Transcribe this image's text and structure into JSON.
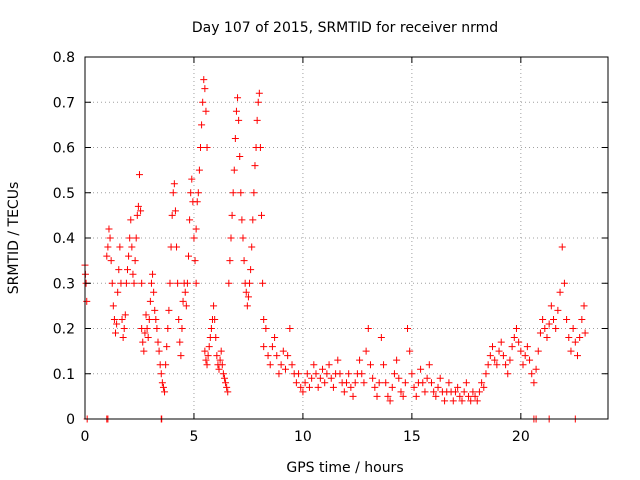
{
  "chart_data": {
    "type": "scatter",
    "title": "Day 107 of 2015, SRMTID for receiver nrmd",
    "xlabel": "GPS time / hours",
    "ylabel": "SRMTID / TECUs",
    "xlim": [
      0,
      24
    ],
    "ylim": [
      0,
      0.8
    ],
    "xticks": [
      0,
      5,
      10,
      15,
      20
    ],
    "yticks": [
      0,
      0.1,
      0.2,
      0.3,
      0.4,
      0.5,
      0.6,
      0.7,
      0.8
    ],
    "xtick_labels": [
      "0",
      "5",
      "10",
      "15",
      "20"
    ],
    "ytick_labels": [
      "0",
      "0.1",
      "0.2",
      "0.3",
      "0.4",
      "0.5",
      "0.6",
      "0.7",
      "0.8"
    ],
    "grid": true,
    "marker": "plus",
    "series": [
      {
        "name": "SRMTID",
        "color": "#ff0000",
        "points": [
          [
            0.0,
            0.34
          ],
          [
            0.02,
            0.32
          ],
          [
            0.05,
            0.3
          ],
          [
            0.08,
            0.26
          ],
          [
            0.1,
            0.0
          ],
          [
            1.0,
            0.0
          ],
          [
            1.05,
            0.0
          ],
          [
            1.0,
            0.36
          ],
          [
            1.05,
            0.38
          ],
          [
            1.1,
            0.42
          ],
          [
            1.15,
            0.4
          ],
          [
            1.2,
            0.35
          ],
          [
            1.25,
            0.3
          ],
          [
            1.3,
            0.25
          ],
          [
            1.35,
            0.22
          ],
          [
            1.4,
            0.19
          ],
          [
            1.45,
            0.21
          ],
          [
            1.5,
            0.28
          ],
          [
            1.55,
            0.33
          ],
          [
            1.6,
            0.38
          ],
          [
            1.65,
            0.3
          ],
          [
            1.7,
            0.22
          ],
          [
            1.75,
            0.18
          ],
          [
            1.8,
            0.2
          ],
          [
            1.85,
            0.23
          ],
          [
            1.9,
            0.3
          ],
          [
            1.95,
            0.33
          ],
          [
            2.0,
            0.36
          ],
          [
            2.05,
            0.4
          ],
          [
            2.1,
            0.44
          ],
          [
            2.15,
            0.38
          ],
          [
            2.2,
            0.32
          ],
          [
            2.25,
            0.3
          ],
          [
            2.3,
            0.35
          ],
          [
            2.35,
            0.4
          ],
          [
            2.4,
            0.45
          ],
          [
            2.45,
            0.47
          ],
          [
            2.5,
            0.54
          ],
          [
            2.55,
            0.46
          ],
          [
            2.6,
            0.3
          ],
          [
            2.6,
            0.2
          ],
          [
            2.65,
            0.17
          ],
          [
            2.7,
            0.15
          ],
          [
            2.75,
            0.19
          ],
          [
            2.8,
            0.23
          ],
          [
            2.85,
            0.2
          ],
          [
            2.9,
            0.18
          ],
          [
            2.95,
            0.22
          ],
          [
            3.0,
            0.26
          ],
          [
            3.05,
            0.3
          ],
          [
            3.1,
            0.32
          ],
          [
            3.15,
            0.28
          ],
          [
            3.2,
            0.24
          ],
          [
            3.25,
            0.22
          ],
          [
            3.3,
            0.2
          ],
          [
            3.35,
            0.17
          ],
          [
            3.4,
            0.15
          ],
          [
            3.45,
            0.12
          ],
          [
            3.5,
            0.0
          ],
          [
            3.52,
            0.0
          ],
          [
            3.5,
            0.1
          ],
          [
            3.55,
            0.08
          ],
          [
            3.6,
            0.07
          ],
          [
            3.65,
            0.06
          ],
          [
            3.7,
            0.12
          ],
          [
            3.75,
            0.16
          ],
          [
            3.8,
            0.2
          ],
          [
            3.85,
            0.24
          ],
          [
            3.9,
            0.3
          ],
          [
            3.95,
            0.38
          ],
          [
            4.0,
            0.45
          ],
          [
            4.05,
            0.5
          ],
          [
            4.1,
            0.52
          ],
          [
            4.15,
            0.46
          ],
          [
            4.2,
            0.38
          ],
          [
            4.25,
            0.3
          ],
          [
            4.3,
            0.22
          ],
          [
            4.35,
            0.17
          ],
          [
            4.4,
            0.14
          ],
          [
            4.45,
            0.2
          ],
          [
            4.5,
            0.26
          ],
          [
            4.55,
            0.3
          ],
          [
            4.6,
            0.28
          ],
          [
            4.65,
            0.25
          ],
          [
            4.7,
            0.3
          ],
          [
            4.75,
            0.36
          ],
          [
            4.8,
            0.44
          ],
          [
            4.85,
            0.5
          ],
          [
            4.9,
            0.53
          ],
          [
            4.95,
            0.48
          ],
          [
            5.0,
            0.4
          ],
          [
            5.05,
            0.35
          ],
          [
            5.1,
            0.3
          ],
          [
            5.1,
            0.42
          ],
          [
            5.15,
            0.48
          ],
          [
            5.2,
            0.5
          ],
          [
            5.25,
            0.55
          ],
          [
            5.3,
            0.6
          ],
          [
            5.35,
            0.65
          ],
          [
            5.4,
            0.7
          ],
          [
            5.45,
            0.75
          ],
          [
            5.5,
            0.73
          ],
          [
            5.55,
            0.68
          ],
          [
            5.6,
            0.6
          ],
          [
            5.5,
            0.15
          ],
          [
            5.55,
            0.13
          ],
          [
            5.6,
            0.12
          ],
          [
            5.65,
            0.14
          ],
          [
            5.7,
            0.16
          ],
          [
            5.75,
            0.18
          ],
          [
            5.8,
            0.2
          ],
          [
            5.85,
            0.22
          ],
          [
            5.9,
            0.25
          ],
          [
            5.95,
            0.22
          ],
          [
            6.0,
            0.18
          ],
          [
            6.05,
            0.14
          ],
          [
            6.1,
            0.12
          ],
          [
            6.15,
            0.11
          ],
          [
            6.2,
            0.13
          ],
          [
            6.25,
            0.15
          ],
          [
            6.3,
            0.12
          ],
          [
            6.35,
            0.1
          ],
          [
            6.4,
            0.09
          ],
          [
            6.45,
            0.08
          ],
          [
            6.5,
            0.07
          ],
          [
            6.55,
            0.06
          ],
          [
            6.6,
            0.3
          ],
          [
            6.65,
            0.35
          ],
          [
            6.7,
            0.4
          ],
          [
            6.75,
            0.45
          ],
          [
            6.8,
            0.5
          ],
          [
            6.85,
            0.55
          ],
          [
            6.9,
            0.62
          ],
          [
            6.95,
            0.68
          ],
          [
            7.0,
            0.71
          ],
          [
            7.05,
            0.66
          ],
          [
            7.1,
            0.58
          ],
          [
            7.15,
            0.5
          ],
          [
            7.2,
            0.44
          ],
          [
            7.25,
            0.4
          ],
          [
            7.3,
            0.35
          ],
          [
            7.35,
            0.3
          ],
          [
            7.4,
            0.28
          ],
          [
            7.45,
            0.25
          ],
          [
            7.5,
            0.27
          ],
          [
            7.55,
            0.3
          ],
          [
            7.6,
            0.33
          ],
          [
            7.65,
            0.38
          ],
          [
            7.7,
            0.44
          ],
          [
            7.75,
            0.5
          ],
          [
            7.8,
            0.56
          ],
          [
            7.85,
            0.6
          ],
          [
            7.9,
            0.66
          ],
          [
            7.95,
            0.7
          ],
          [
            8.0,
            0.72
          ],
          [
            8.05,
            0.6
          ],
          [
            8.1,
            0.45
          ],
          [
            8.15,
            0.3
          ],
          [
            8.2,
            0.22
          ],
          [
            8.2,
            0.16
          ],
          [
            8.3,
            0.2
          ],
          [
            8.4,
            0.14
          ],
          [
            8.5,
            0.12
          ],
          [
            8.6,
            0.16
          ],
          [
            8.7,
            0.18
          ],
          [
            8.8,
            0.14
          ],
          [
            8.9,
            0.1
          ],
          [
            9.0,
            0.12
          ],
          [
            9.1,
            0.15
          ],
          [
            9.2,
            0.11
          ],
          [
            9.3,
            0.14
          ],
          [
            9.4,
            0.2
          ],
          [
            9.5,
            0.12
          ],
          [
            9.6,
            0.1
          ],
          [
            9.7,
            0.08
          ],
          [
            9.8,
            0.1
          ],
          [
            9.9,
            0.07
          ],
          [
            10.0,
            0.06
          ],
          [
            10.1,
            0.08
          ],
          [
            10.2,
            0.1
          ],
          [
            10.3,
            0.07
          ],
          [
            10.4,
            0.09
          ],
          [
            10.5,
            0.12
          ],
          [
            10.6,
            0.1
          ],
          [
            10.7,
            0.07
          ],
          [
            10.8,
            0.09
          ],
          [
            10.9,
            0.11
          ],
          [
            11.0,
            0.08
          ],
          [
            11.1,
            0.1
          ],
          [
            11.2,
            0.12
          ],
          [
            11.3,
            0.09
          ],
          [
            11.4,
            0.07
          ],
          [
            11.5,
            0.1
          ],
          [
            11.6,
            0.13
          ],
          [
            11.7,
            0.1
          ],
          [
            11.8,
            0.08
          ],
          [
            11.9,
            0.06
          ],
          [
            12.0,
            0.08
          ],
          [
            12.1,
            0.1
          ],
          [
            12.2,
            0.07
          ],
          [
            12.3,
            0.05
          ],
          [
            12.4,
            0.08
          ],
          [
            12.5,
            0.1
          ],
          [
            12.6,
            0.13
          ],
          [
            12.7,
            0.1
          ],
          [
            12.8,
            0.08
          ],
          [
            12.9,
            0.15
          ],
          [
            13.0,
            0.2
          ],
          [
            13.1,
            0.12
          ],
          [
            13.2,
            0.09
          ],
          [
            13.3,
            0.07
          ],
          [
            13.4,
            0.05
          ],
          [
            13.5,
            0.08
          ],
          [
            13.6,
            0.18
          ],
          [
            13.7,
            0.12
          ],
          [
            13.8,
            0.08
          ],
          [
            13.9,
            0.05
          ],
          [
            14.0,
            0.04
          ],
          [
            14.1,
            0.07
          ],
          [
            14.2,
            0.1
          ],
          [
            14.3,
            0.13
          ],
          [
            14.4,
            0.09
          ],
          [
            14.5,
            0.06
          ],
          [
            14.6,
            0.05
          ],
          [
            14.7,
            0.08
          ],
          [
            14.8,
            0.2
          ],
          [
            14.9,
            0.15
          ],
          [
            15.0,
            0.1
          ],
          [
            15.1,
            0.07
          ],
          [
            15.2,
            0.05
          ],
          [
            15.3,
            0.08
          ],
          [
            15.4,
            0.11
          ],
          [
            15.5,
            0.08
          ],
          [
            15.6,
            0.06
          ],
          [
            15.7,
            0.09
          ],
          [
            15.8,
            0.12
          ],
          [
            15.9,
            0.08
          ],
          [
            16.0,
            0.06
          ],
          [
            16.1,
            0.05
          ],
          [
            16.2,
            0.07
          ],
          [
            16.3,
            0.09
          ],
          [
            16.4,
            0.06
          ],
          [
            16.5,
            0.04
          ],
          [
            16.6,
            0.06
          ],
          [
            16.7,
            0.08
          ],
          [
            16.8,
            0.06
          ],
          [
            16.9,
            0.04
          ],
          [
            17.0,
            0.06
          ],
          [
            17.1,
            0.07
          ],
          [
            17.2,
            0.05
          ],
          [
            17.3,
            0.04
          ],
          [
            17.4,
            0.06
          ],
          [
            17.5,
            0.08
          ],
          [
            17.6,
            0.05
          ],
          [
            17.7,
            0.04
          ],
          [
            17.8,
            0.06
          ],
          [
            17.9,
            0.05
          ],
          [
            18.0,
            0.04
          ],
          [
            18.1,
            0.06
          ],
          [
            18.2,
            0.08
          ],
          [
            18.3,
            0.07
          ],
          [
            18.4,
            0.1
          ],
          [
            18.5,
            0.12
          ],
          [
            18.6,
            0.14
          ],
          [
            18.7,
            0.16
          ],
          [
            18.8,
            0.13
          ],
          [
            18.9,
            0.12
          ],
          [
            19.0,
            0.15
          ],
          [
            19.1,
            0.17
          ],
          [
            19.2,
            0.14
          ],
          [
            19.3,
            0.12
          ],
          [
            19.4,
            0.1
          ],
          [
            19.5,
            0.13
          ],
          [
            19.6,
            0.16
          ],
          [
            19.7,
            0.18
          ],
          [
            19.8,
            0.2
          ],
          [
            19.9,
            0.17
          ],
          [
            20.0,
            0.15
          ],
          [
            20.1,
            0.12
          ],
          [
            20.2,
            0.14
          ],
          [
            20.3,
            0.16
          ],
          [
            20.4,
            0.13
          ],
          [
            20.5,
            0.1
          ],
          [
            20.6,
            0.08
          ],
          [
            20.7,
            0.11
          ],
          [
            20.8,
            0.15
          ],
          [
            20.9,
            0.19
          ],
          [
            21.0,
            0.22
          ],
          [
            21.1,
            0.2
          ],
          [
            21.2,
            0.18
          ],
          [
            21.3,
            0.21
          ],
          [
            21.4,
            0.25
          ],
          [
            21.5,
            0.22
          ],
          [
            21.6,
            0.2
          ],
          [
            21.7,
            0.24
          ],
          [
            21.8,
            0.28
          ],
          [
            21.9,
            0.38
          ],
          [
            22.0,
            0.3
          ],
          [
            22.1,
            0.22
          ],
          [
            22.2,
            0.18
          ],
          [
            22.3,
            0.15
          ],
          [
            22.4,
            0.2
          ],
          [
            22.5,
            0.17
          ],
          [
            22.6,
            0.14
          ],
          [
            22.7,
            0.18
          ],
          [
            22.8,
            0.22
          ],
          [
            22.9,
            0.25
          ],
          [
            22.95,
            0.19
          ],
          [
            20.6,
            0.0
          ],
          [
            20.7,
            0.0
          ],
          [
            21.3,
            0.0
          ],
          [
            22.5,
            0.0
          ]
        ]
      }
    ]
  }
}
